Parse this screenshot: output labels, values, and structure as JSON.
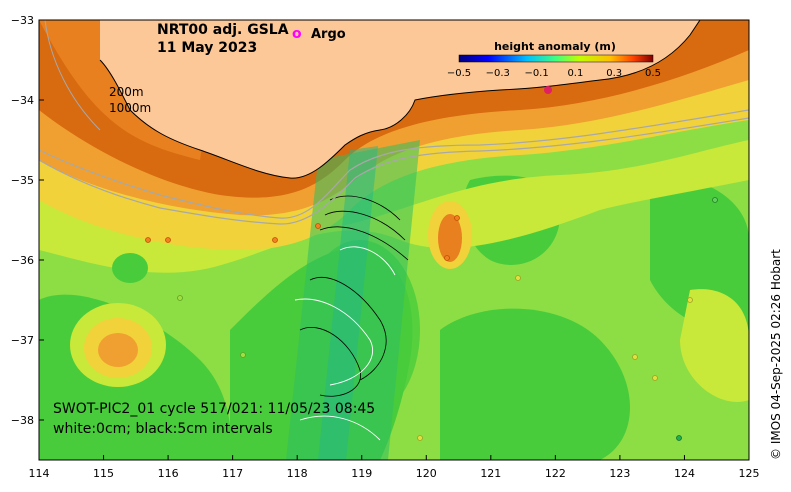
{
  "title": {
    "line1": "NRT00 adj. GSLA",
    "line2": "11 May 2023"
  },
  "legend": {
    "argo_symbol": "o",
    "argo_label": "Argo",
    "argo_color": "#ff00ff"
  },
  "colorbar": {
    "title": "height anomaly (m)",
    "ticks": [
      "−0.5",
      "−0.3",
      "−0.1",
      "0.1",
      "0.3",
      "0.5"
    ],
    "colors": [
      "#00007f",
      "#0000ff",
      "#0080ff",
      "#00ffff",
      "#40ff80",
      "#80ff00",
      "#ffff00",
      "#ff8000",
      "#ff0000",
      "#7f0000"
    ]
  },
  "isobaths": {
    "label_200": "200m",
    "label_1000": "1000m"
  },
  "swot": {
    "line1": "SWOT-PIC2_01 cycle 517/021: 11/05/23 08:45",
    "line2": "white:0cm; black:5cm intervals"
  },
  "credit": "© IMOS 04-Sep-2025 02:26 Hobart",
  "axes": {
    "x_ticks": [
      "114",
      "115",
      "116",
      "117",
      "118",
      "119",
      "120",
      "121",
      "122",
      "123",
      "124",
      "125"
    ],
    "y_ticks": [
      "−33",
      "−34",
      "−35",
      "−36",
      "−37",
      "−38"
    ],
    "x_range": [
      114,
      125
    ],
    "y_range": [
      -38.5,
      -33
    ]
  },
  "colors": {
    "land": "#fdc898",
    "coast_band": "#d86a10",
    "orange": "#f0a030",
    "yellow": "#f2d23a",
    "yellow_green": "#c8e83a",
    "light_green": "#8cde44",
    "green": "#48cc3c",
    "deep_green": "#20b848",
    "swot_green": "#28c070",
    "red_high": "#e06020"
  }
}
